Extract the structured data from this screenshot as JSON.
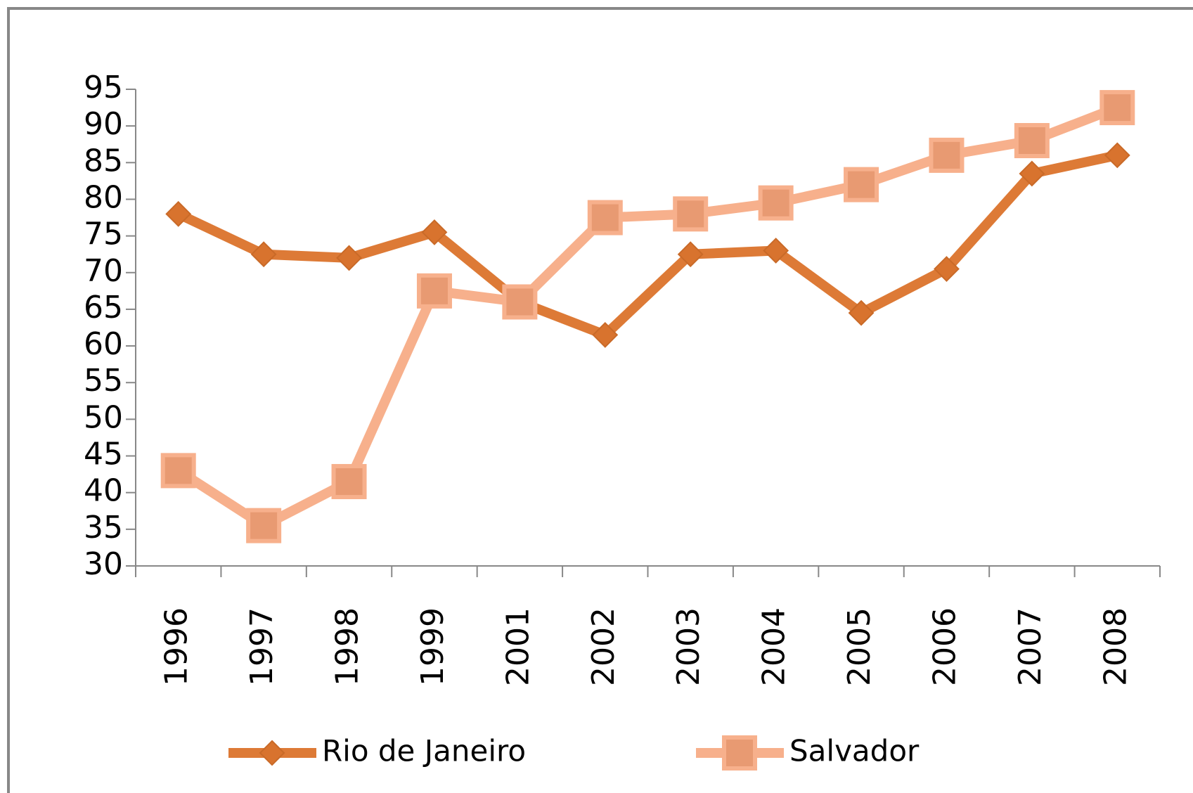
{
  "chart_data": {
    "type": "line",
    "categories": [
      "1996",
      "1997",
      "1998",
      "1999",
      "2001",
      "2002",
      "2003",
      "2004",
      "2005",
      "2006",
      "2007",
      "2008"
    ],
    "series": [
      {
        "name": "Rio de Janeiro",
        "color": "#dd7a36",
        "values": [
          78,
          72.5,
          72,
          75.5,
          66,
          61.5,
          72.5,
          73,
          64.5,
          70.5,
          83.5,
          86
        ]
      },
      {
        "name": "Salvador",
        "color": "#f7b08c",
        "values": [
          43,
          35.5,
          41.5,
          67.5,
          66,
          77.5,
          78,
          79.5,
          82,
          86,
          88,
          92.5
        ]
      }
    ],
    "ylim": [
      30,
      95
    ],
    "yticks": [
      30,
      35,
      40,
      45,
      50,
      55,
      60,
      65,
      70,
      75,
      80,
      85,
      90,
      95
    ]
  }
}
